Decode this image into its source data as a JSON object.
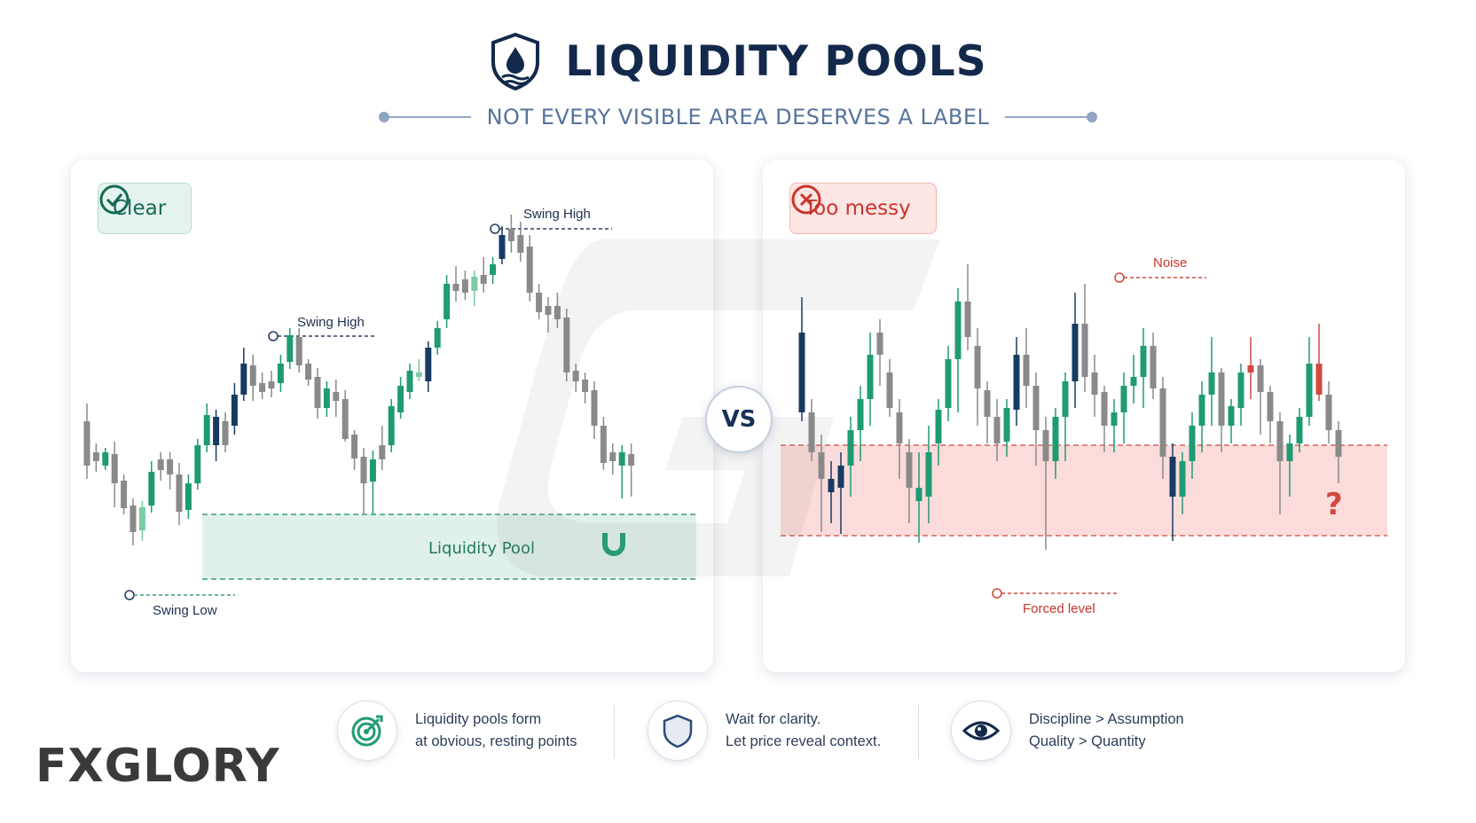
{
  "header": {
    "title": "LIQUIDITY POOLS",
    "subtitle": "NOT EVERY VISIBLE AREA DESERVES A LABEL",
    "icon": "shield-droplet-icon"
  },
  "left_panel": {
    "badge": "Clear",
    "badge_icon": "check-circle-icon",
    "label_swing_high_1": "Swing High",
    "label_swing_high_2": "Swing High",
    "label_swing_low": "Swing Low",
    "label_pool": "Liquidity Pool",
    "pool_icon": "magnet-icon"
  },
  "vs_label": "VS",
  "right_panel": {
    "badge": "Too messy",
    "badge_icon": "x-circle-icon",
    "label_noise": "Noise",
    "label_forced": "Forced level",
    "question": "?"
  },
  "footer": [
    {
      "icon": "target-icon",
      "line1": "Liquidity pools form",
      "line2": "at obvious, resting points"
    },
    {
      "icon": "shield-icon",
      "line1": "Wait for clarity.",
      "line2": "Let price reveal context."
    },
    {
      "icon": "eye-icon",
      "line1": "Discipline > Assumption",
      "line2": "Quality > Quantity"
    }
  ],
  "logo": {
    "part1": "F",
    "part2": "X",
    "part3": "GLORY"
  },
  "colors": {
    "navy": "#13294b",
    "green": "#1f9b74",
    "light_green": "#7ccaa4",
    "dark_blue": "#173b63",
    "gray": "#8a8a8a",
    "red": "#d14a40",
    "pool_fill": "#dff1e9",
    "messy_fill": "#fbdcda"
  }
}
